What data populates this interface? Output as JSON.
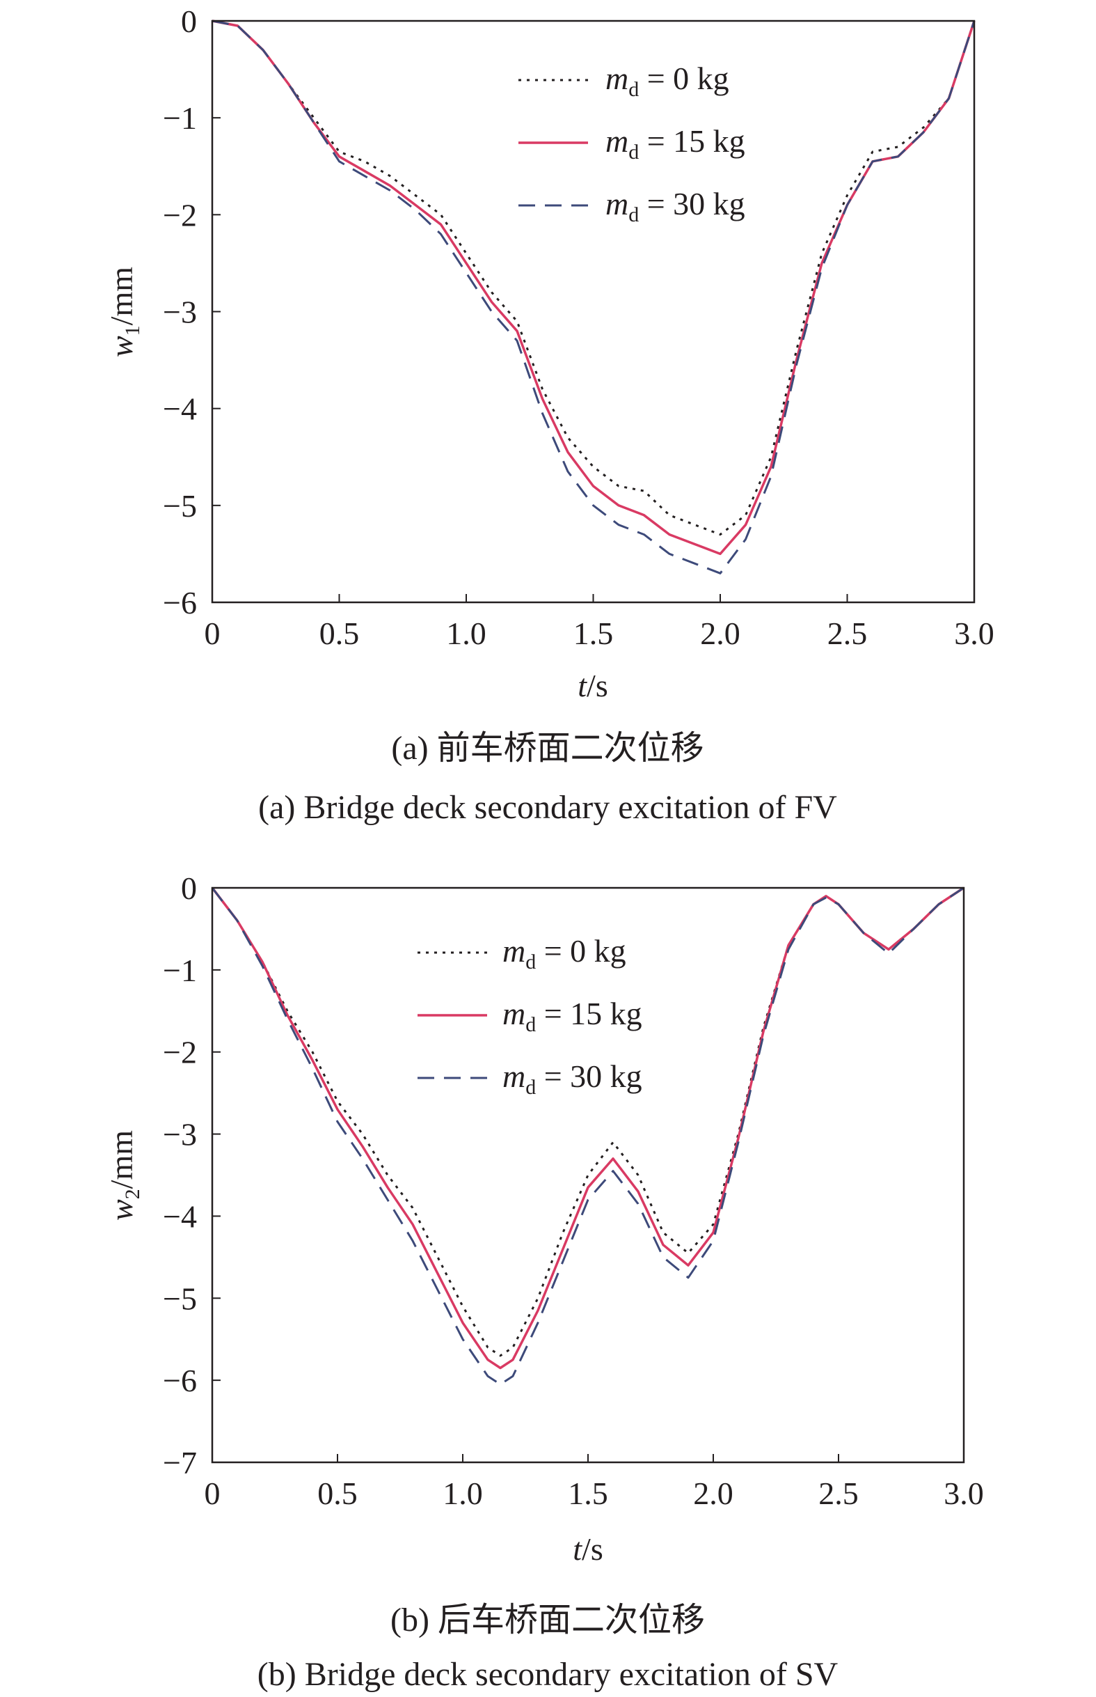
{
  "chart_data": [
    {
      "type": "line",
      "caption_cn": "(a) 前车桥面二次位移",
      "caption_en": "(a) Bridge deck secondary excitation of FV",
      "xlabel": {
        "var": "t",
        "unit": "/s"
      },
      "ylabel": {
        "var": "w",
        "sub": "1",
        "unit": "/mm"
      },
      "xlim": [
        0,
        3.0
      ],
      "ylim": [
        -6,
        0
      ],
      "xticks": [
        "0",
        "0.5",
        "1.0",
        "1.5",
        "2.0",
        "2.5",
        "3.0"
      ],
      "yticks": [
        "0",
        "−1",
        "−2",
        "−3",
        "−4",
        "−5",
        "−6"
      ],
      "legend_position": "top-center",
      "series": [
        {
          "name_var": "m",
          "name_sub": "d",
          "name_rest": " = 0 kg",
          "style": "dotted",
          "color": "#231f20",
          "x": [
            0,
            0.1,
            0.2,
            0.3,
            0.4,
            0.5,
            0.6,
            0.7,
            0.8,
            0.9,
            1.0,
            1.1,
            1.2,
            1.3,
            1.4,
            1.5,
            1.6,
            1.7,
            1.8,
            1.9,
            2.0,
            2.1,
            2.2,
            2.3,
            2.4,
            2.5,
            2.6,
            2.7,
            2.8,
            2.9,
            3.0
          ],
          "y": [
            0,
            -0.05,
            -0.3,
            -0.65,
            -1.0,
            -1.35,
            -1.45,
            -1.6,
            -1.8,
            -2.0,
            -2.4,
            -2.8,
            -3.1,
            -3.8,
            -4.3,
            -4.6,
            -4.8,
            -4.85,
            -5.1,
            -5.2,
            -5.3,
            -5.1,
            -4.5,
            -3.4,
            -2.4,
            -1.8,
            -1.35,
            -1.3,
            -1.1,
            -0.8,
            0
          ]
        },
        {
          "name_var": "m",
          "name_sub": "d",
          "name_rest": " = 15 kg",
          "style": "solid",
          "color": "#d93a63",
          "x": [
            0,
            0.1,
            0.2,
            0.3,
            0.4,
            0.5,
            0.6,
            0.7,
            0.8,
            0.9,
            1.0,
            1.1,
            1.2,
            1.3,
            1.4,
            1.5,
            1.6,
            1.7,
            1.8,
            1.9,
            2.0,
            2.1,
            2.2,
            2.3,
            2.4,
            2.5,
            2.6,
            2.7,
            2.8,
            2.9,
            3.0
          ],
          "y": [
            0,
            -0.05,
            -0.3,
            -0.65,
            -1.05,
            -1.4,
            -1.55,
            -1.7,
            -1.9,
            -2.1,
            -2.5,
            -2.9,
            -3.2,
            -3.9,
            -4.45,
            -4.8,
            -5.0,
            -5.1,
            -5.3,
            -5.4,
            -5.5,
            -5.2,
            -4.6,
            -3.5,
            -2.5,
            -1.9,
            -1.45,
            -1.4,
            -1.15,
            -0.8,
            0
          ]
        },
        {
          "name_var": "m",
          "name_sub": "d",
          "name_rest": " = 30 kg",
          "style": "dashed",
          "color": "#3d4a7a",
          "x": [
            0,
            0.1,
            0.2,
            0.3,
            0.4,
            0.5,
            0.6,
            0.7,
            0.8,
            0.9,
            1.0,
            1.1,
            1.2,
            1.3,
            1.4,
            1.5,
            1.6,
            1.7,
            1.8,
            1.9,
            2.0,
            2.1,
            2.2,
            2.3,
            2.4,
            2.5,
            2.6,
            2.7,
            2.8,
            2.9,
            3.0
          ],
          "y": [
            0,
            -0.05,
            -0.3,
            -0.65,
            -1.05,
            -1.45,
            -1.6,
            -1.75,
            -1.95,
            -2.2,
            -2.6,
            -3.0,
            -3.3,
            -4.05,
            -4.65,
            -5.0,
            -5.2,
            -5.3,
            -5.5,
            -5.6,
            -5.7,
            -5.35,
            -4.7,
            -3.55,
            -2.55,
            -1.9,
            -1.45,
            -1.4,
            -1.15,
            -0.8,
            0
          ]
        }
      ]
    },
    {
      "type": "line",
      "caption_cn": "(b) 后车桥面二次位移",
      "caption_en": "(b) Bridge deck secondary excitation of SV",
      "xlabel": {
        "var": "t",
        "unit": "/s"
      },
      "ylabel": {
        "var": "w",
        "sub": "2",
        "unit": "/mm"
      },
      "xlim": [
        0,
        3.0
      ],
      "ylim": [
        -7,
        0
      ],
      "xticks": [
        "0",
        "0.5",
        "1.0",
        "1.5",
        "2.0",
        "2.5",
        "3.0"
      ],
      "yticks": [
        "0",
        "−1",
        "−2",
        "−3",
        "−4",
        "−5",
        "−6",
        "−7"
      ],
      "legend_position": "top-center",
      "series": [
        {
          "name_var": "m",
          "name_sub": "d",
          "name_rest": " = 0 kg",
          "style": "dotted",
          "color": "#231f20",
          "x": [
            0,
            0.1,
            0.2,
            0.3,
            0.4,
            0.5,
            0.6,
            0.7,
            0.8,
            0.9,
            1.0,
            1.1,
            1.15,
            1.2,
            1.3,
            1.4,
            1.5,
            1.6,
            1.7,
            1.8,
            1.9,
            2.0,
            2.1,
            2.2,
            2.3,
            2.4,
            2.45,
            2.5,
            2.6,
            2.7,
            2.8,
            2.9,
            3.0
          ],
          "y": [
            0,
            -0.4,
            -0.9,
            -1.5,
            -2.0,
            -2.6,
            -3.0,
            -3.5,
            -3.9,
            -4.5,
            -5.1,
            -5.6,
            -5.7,
            -5.6,
            -5.0,
            -4.2,
            -3.5,
            -3.1,
            -3.5,
            -4.2,
            -4.45,
            -4.1,
            -3.0,
            -1.7,
            -0.7,
            -0.2,
            -0.1,
            -0.2,
            -0.55,
            -0.75,
            -0.5,
            -0.2,
            0
          ]
        },
        {
          "name_var": "m",
          "name_sub": "d",
          "name_rest": " = 15 kg",
          "style": "solid",
          "color": "#d93a63",
          "x": [
            0,
            0.1,
            0.2,
            0.3,
            0.4,
            0.5,
            0.6,
            0.7,
            0.8,
            0.9,
            1.0,
            1.1,
            1.15,
            1.2,
            1.3,
            1.4,
            1.5,
            1.6,
            1.7,
            1.8,
            1.9,
            2.0,
            2.1,
            2.2,
            2.3,
            2.4,
            2.45,
            2.5,
            2.6,
            2.7,
            2.8,
            2.9,
            3.0
          ],
          "y": [
            0,
            -0.4,
            -0.9,
            -1.55,
            -2.1,
            -2.7,
            -3.15,
            -3.65,
            -4.1,
            -4.7,
            -5.3,
            -5.75,
            -5.85,
            -5.75,
            -5.15,
            -4.4,
            -3.65,
            -3.3,
            -3.7,
            -4.35,
            -4.6,
            -4.2,
            -3.05,
            -1.75,
            -0.7,
            -0.2,
            -0.1,
            -0.2,
            -0.55,
            -0.75,
            -0.5,
            -0.2,
            0
          ]
        },
        {
          "name_var": "m",
          "name_sub": "d",
          "name_rest": " = 30 kg",
          "style": "dashed",
          "color": "#3d4a7a",
          "x": [
            0,
            0.1,
            0.2,
            0.3,
            0.4,
            0.5,
            0.6,
            0.7,
            0.8,
            0.9,
            1.0,
            1.1,
            1.15,
            1.2,
            1.3,
            1.4,
            1.5,
            1.6,
            1.7,
            1.8,
            1.9,
            2.0,
            2.1,
            2.2,
            2.3,
            2.4,
            2.45,
            2.5,
            2.6,
            2.7,
            2.8,
            2.9,
            3.0
          ],
          "y": [
            0,
            -0.4,
            -0.95,
            -1.6,
            -2.2,
            -2.85,
            -3.3,
            -3.8,
            -4.3,
            -4.9,
            -5.5,
            -5.95,
            -6.05,
            -5.95,
            -5.3,
            -4.55,
            -3.8,
            -3.45,
            -3.85,
            -4.5,
            -4.75,
            -4.3,
            -3.1,
            -1.8,
            -0.75,
            -0.2,
            -0.12,
            -0.2,
            -0.55,
            -0.8,
            -0.5,
            -0.2,
            0
          ]
        }
      ]
    }
  ]
}
